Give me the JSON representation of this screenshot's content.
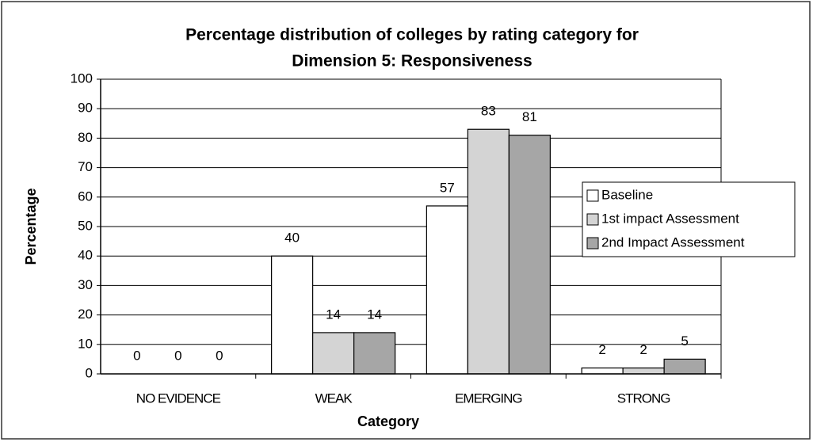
{
  "chart_data": {
    "type": "bar",
    "title": [
      "Percentage distribution of colleges by rating category for",
      "Dimension 5:  Responsiveness"
    ],
    "x_label": "Category",
    "y_label": "Percentage",
    "categories": [
      "NO EVIDENCE",
      "WEAK",
      "EMERGING",
      "STRONG"
    ],
    "series": [
      {
        "name": "Baseline",
        "color": "#ffffff",
        "values": [
          0,
          40,
          57,
          2
        ]
      },
      {
        "name": "1st impact Assessment",
        "color": "#d4d4d4",
        "values": [
          0,
          14,
          83,
          2
        ]
      },
      {
        "name": "2nd Impact Assessment",
        "color": "#a6a6a6",
        "values": [
          0,
          14,
          81,
          5
        ]
      }
    ],
    "ylim": [
      0,
      100
    ],
    "yticks": [
      0,
      10,
      20,
      30,
      40,
      50,
      60,
      70,
      80,
      90,
      100
    ],
    "grid": true,
    "legend": "right"
  }
}
